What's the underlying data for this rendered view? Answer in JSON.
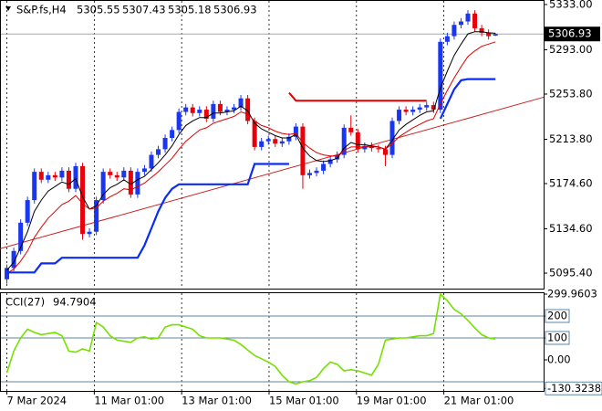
{
  "chart_data": [
    {
      "type": "candlestick",
      "title": "S&P.fs,H4",
      "xlim": [
        -1,
        78
      ],
      "xticks": [
        {
          "value": 0,
          "label": "7 Mar 2024"
        },
        {
          "value": 12.7,
          "label": "11 Mar 01:00"
        },
        {
          "value": 25.4,
          "label": "13 Mar 01:00"
        },
        {
          "value": 38.1,
          "label": "15 Mar 01:00"
        },
        {
          "value": 50.8,
          "label": "19 Mar 01:00"
        },
        {
          "value": 63.5,
          "label": "21 Mar 01:00"
        }
      ],
      "ylim": [
        5081.7,
        5337.0
      ],
      "yticks": [
        {
          "value": 5333,
          "label": "5333.00"
        },
        {
          "value": 5293,
          "label": "5293.00"
        },
        {
          "value": 5253.8,
          "label": "5253.80"
        },
        {
          "value": 5213.8,
          "label": "5213.80"
        },
        {
          "value": 5174.6,
          "label": "5174.60"
        },
        {
          "value": 5134.6,
          "label": "5134.60"
        },
        {
          "value": 5095.4,
          "label": "5095.40"
        }
      ],
      "up_color": "#1a36f0",
      "down_color": "#e8000b",
      "open": [
        5090,
        5100,
        5115,
        5140,
        5160,
        5185,
        5178,
        5182,
        5180,
        5186,
        5170,
        5190,
        5130,
        5132,
        5160,
        5185,
        5182,
        5180,
        5186,
        5165,
        5185,
        5188,
        5200,
        5205,
        5215,
        5222,
        5238,
        5242,
        5237,
        5240,
        5232,
        5245,
        5238,
        5240,
        5242,
        5250,
        5230,
        5207,
        5212,
        5214,
        5210,
        5212,
        5216,
        5225,
        5182,
        5184,
        5186,
        5192,
        5196,
        5200,
        5224,
        5220,
        5205,
        5208,
        5206,
        5205,
        5200,
        5230,
        5240,
        5238,
        5240,
        5242,
        5244,
        5240,
        5300,
        5305,
        5315,
        5318,
        5325,
        5312,
        5308,
        5305.55
      ],
      "high": [
        5103,
        5118,
        5143,
        5163,
        5188,
        5188,
        5185,
        5185,
        5189,
        5189,
        5193,
        5193,
        5135,
        5163,
        5188,
        5188,
        5185,
        5189,
        5189,
        5188,
        5191,
        5203,
        5208,
        5218,
        5225,
        5241,
        5245,
        5245,
        5243,
        5243,
        5248,
        5248,
        5243,
        5245,
        5253,
        5253,
        5233,
        5215,
        5217,
        5217,
        5215,
        5219,
        5228,
        5228,
        5187,
        5189,
        5195,
        5199,
        5203,
        5227,
        5235,
        5223,
        5211,
        5211,
        5209,
        5208,
        5233,
        5243,
        5243,
        5243,
        5245,
        5247,
        5247,
        5303,
        5308,
        5318,
        5321,
        5328,
        5328,
        5315,
        5311,
        5307.43
      ],
      "low": [
        5086,
        5097,
        5112,
        5137,
        5157,
        5175,
        5175,
        5177,
        5177,
        5167,
        5167,
        5125,
        5127,
        5129,
        5157,
        5179,
        5177,
        5177,
        5162,
        5162,
        5182,
        5185,
        5197,
        5202,
        5212,
        5219,
        5235,
        5234,
        5234,
        5229,
        5229,
        5235,
        5235,
        5237,
        5239,
        5227,
        5204,
        5204,
        5209,
        5207,
        5207,
        5209,
        5213,
        5170,
        5179,
        5181,
        5183,
        5189,
        5193,
        5197,
        5217,
        5202,
        5202,
        5203,
        5202,
        5190,
        5197,
        5227,
        5235,
        5235,
        5237,
        5239,
        5237,
        5237,
        5297,
        5302,
        5312,
        5315,
        5309,
        5305,
        5302,
        5305.18
      ],
      "close": [
        5100,
        5115,
        5140,
        5160,
        5185,
        5178,
        5182,
        5180,
        5186,
        5170,
        5190,
        5130,
        5132,
        5160,
        5185,
        5182,
        5180,
        5186,
        5165,
        5185,
        5188,
        5200,
        5205,
        5215,
        5222,
        5238,
        5242,
        5237,
        5240,
        5232,
        5245,
        5238,
        5240,
        5242,
        5250,
        5230,
        5207,
        5212,
        5214,
        5210,
        5212,
        5216,
        5225,
        5182,
        5184,
        5186,
        5192,
        5196,
        5200,
        5224,
        5220,
        5205,
        5208,
        5206,
        5205,
        5200,
        5230,
        5240,
        5238,
        5240,
        5242,
        5244,
        5240,
        5300,
        5305,
        5315,
        5318,
        5325,
        5312,
        5308,
        5305,
        5306.93
      ],
      "series": [
        {
          "color": "#000000",
          "line_width": 1,
          "values": [
            5098,
            5105,
            5118,
            5132,
            5150,
            5160,
            5168,
            5172,
            5176,
            5174,
            5179,
            5163,
            5152,
            5155,
            5165,
            5171,
            5174,
            5178,
            5174,
            5178,
            5181,
            5187,
            5193,
            5200,
            5208,
            5218,
            5226,
            5230,
            5233,
            5233,
            5237,
            5237,
            5238,
            5239,
            5243,
            5239,
            5228,
            5223,
            5220,
            5217,
            5215,
            5215,
            5218,
            5206,
            5199,
            5195,
            5194,
            5195,
            5197,
            5206,
            5211,
            5209,
            5209,
            5208,
            5207,
            5205,
            5213,
            5222,
            5227,
            5231,
            5235,
            5238,
            5239,
            5259,
            5274,
            5288,
            5298,
            5307,
            5309,
            5309,
            5308,
            5307.6
          ]
        },
        {
          "color": "#e00000",
          "line_width": 1,
          "values": [
            5095,
            5099,
            5106,
            5115,
            5127,
            5136,
            5144,
            5150,
            5156,
            5159,
            5164,
            5157,
            5152,
            5153,
            5159,
            5163,
            5166,
            5170,
            5169,
            5172,
            5175,
            5180,
            5185,
            5191,
            5197,
            5205,
            5212,
            5217,
            5222,
            5224,
            5228,
            5230,
            5232,
            5234,
            5238,
            5236,
            5230,
            5226,
            5224,
            5221,
            5219,
            5218,
            5219,
            5211,
            5206,
            5202,
            5200,
            5199,
            5199,
            5204,
            5207,
            5207,
            5207,
            5207,
            5207,
            5205,
            5210,
            5216,
            5220,
            5224,
            5227,
            5230,
            5232,
            5245,
            5257,
            5268,
            5278,
            5287,
            5292,
            5296,
            5298,
            5300
          ]
        },
        {
          "color": "#0a2cf5",
          "line_width": 2.2,
          "values": [
            5096,
            5096,
            5096,
            5096,
            5096,
            5104,
            5104,
            5104,
            5109,
            5109,
            5109,
            5109,
            5109,
            5109,
            5109,
            5109,
            5109,
            5109,
            5109,
            5109,
            5120,
            5135,
            5150,
            5162,
            5170,
            5174,
            5174,
            5174,
            5174,
            5174,
            5174,
            5174,
            5174,
            5174,
            5174,
            5174,
            5192,
            5192,
            5192,
            5192,
            5192,
            5192,
            null,
            null,
            null,
            null,
            null,
            null,
            null,
            null,
            null,
            null,
            null,
            null,
            null,
            null,
            null,
            null,
            null,
            null,
            null,
            null,
            null,
            5232,
            5245,
            5258,
            5266,
            5267,
            5267,
            5267,
            5267,
            5267
          ]
        },
        {
          "color": "#dd0000",
          "line_width": 2,
          "values": [
            null,
            null,
            null,
            null,
            null,
            null,
            null,
            null,
            null,
            null,
            null,
            null,
            null,
            null,
            null,
            null,
            null,
            null,
            null,
            null,
            null,
            null,
            null,
            null,
            null,
            null,
            null,
            null,
            null,
            null,
            null,
            null,
            null,
            null,
            null,
            null,
            null,
            null,
            null,
            null,
            null,
            5255,
            5248,
            5248,
            5248,
            5248,
            5248,
            5248,
            5248,
            5248,
            5248,
            5248,
            5248,
            5248,
            5248,
            5248,
            5248,
            5248,
            5248,
            5248,
            5248,
            5248,
            null,
            null,
            null,
            null,
            null,
            null,
            null,
            null,
            null,
            null
          ]
        }
      ],
      "trendline": {
        "color": "#cc2020",
        "x": [
          -1,
          78
        ],
        "values": [
          5117,
          5251
        ]
      },
      "current_line_color": "#a0a8b0"
    },
    {
      "type": "line",
      "title": "CCI(27)",
      "color": "#76e000",
      "ylim": [
        -141.7,
        308.3
      ],
      "yticks": [
        {
          "value": 299.9603,
          "label": "299.9603"
        },
        200,
        100,
        {
          "value": 0,
          "label": "0.00"
        },
        {
          "value": -130.3238,
          "label": "-130.3238"
        }
      ],
      "levels": [
        200,
        100,
        -100
      ],
      "level_color": "#5b87a8",
      "values": [
        -60,
        40,
        100,
        140,
        125,
        115,
        120,
        125,
        110,
        40,
        35,
        50,
        40,
        170,
        150,
        110,
        90,
        85,
        80,
        100,
        105,
        95,
        100,
        150,
        160,
        160,
        150,
        140,
        110,
        100,
        100,
        100,
        95,
        90,
        70,
        45,
        20,
        5,
        -10,
        -30,
        -70,
        -100,
        -110,
        -100,
        -95,
        -80,
        -40,
        -10,
        -20,
        -50,
        -45,
        -50,
        -60,
        -70,
        -20,
        90,
        95,
        100,
        100,
        105,
        110,
        110,
        120,
        300,
        270,
        230,
        210,
        180,
        145,
        115,
        100,
        94.7904
      ]
    }
  ]
}
